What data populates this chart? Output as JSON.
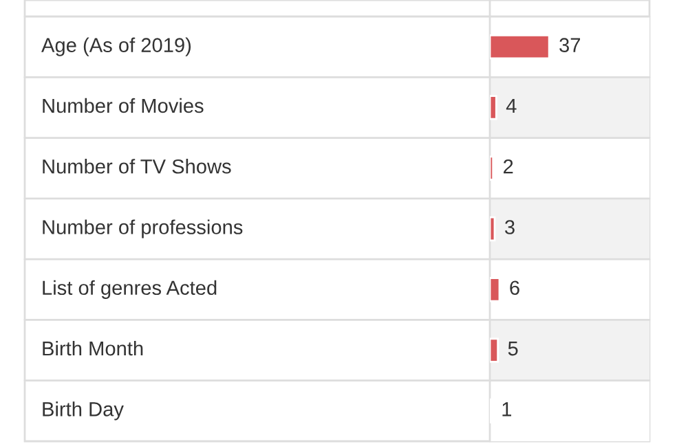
{
  "chart_data": {
    "type": "bar",
    "orientation": "horizontal",
    "categories": [
      "Age (As of 2019)",
      "Number of Movies",
      "Number of TV Shows",
      "Number of professions",
      "List of genres Acted",
      "Birth Month",
      "Birth Day"
    ],
    "values": [
      37,
      4,
      2,
      3,
      6,
      5,
      1
    ],
    "color": "#d9575a",
    "data_labels": true
  }
}
